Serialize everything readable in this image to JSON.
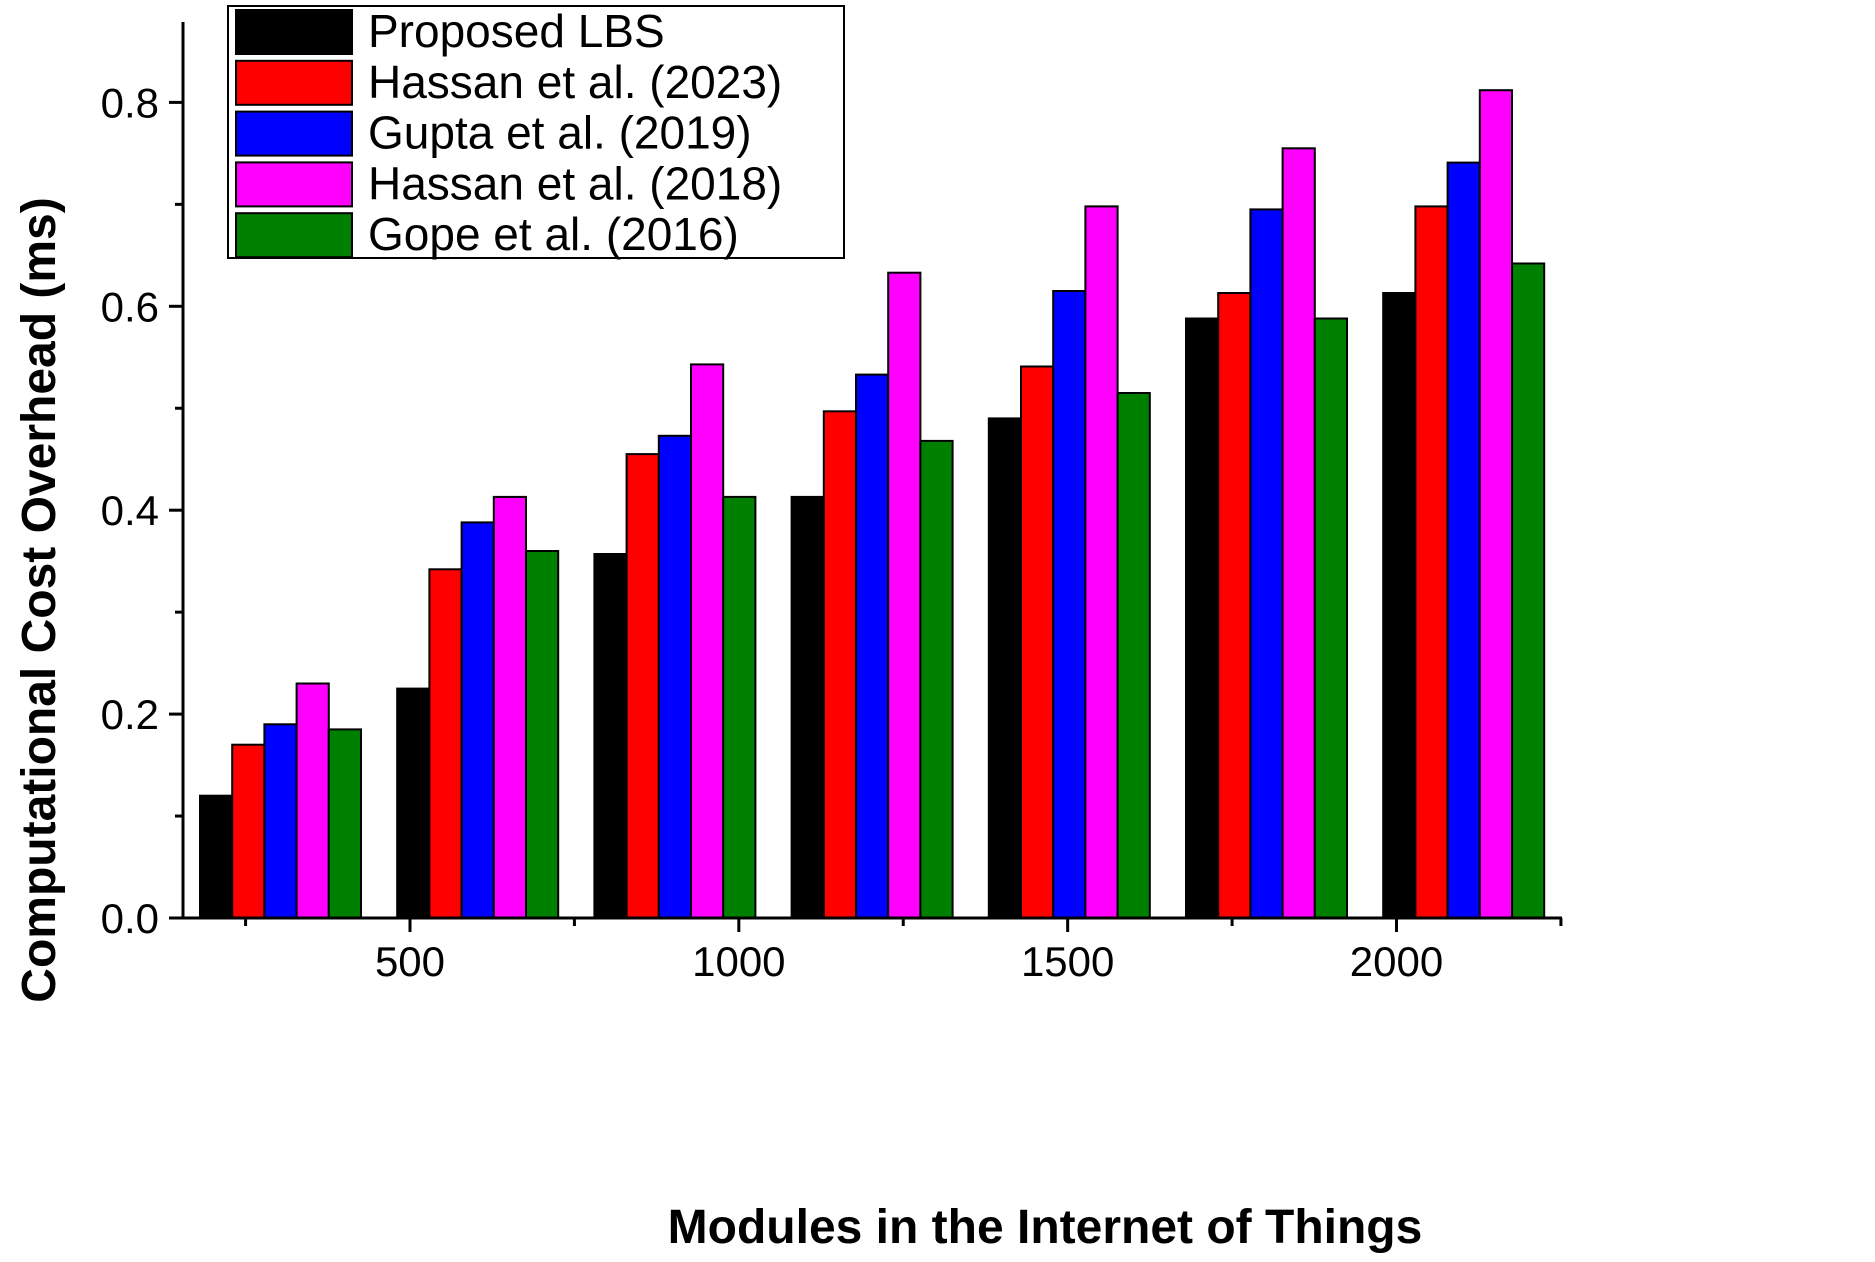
{
  "chart_data": {
    "type": "bar",
    "title": "",
    "xlabel": "Modules in the Internet of Things",
    "ylabel": "Computational Cost Overhead (ms)",
    "ylim": [
      0,
      0.88
    ],
    "yticks": [
      {
        "value": 0.0,
        "label": "0.0"
      },
      {
        "value": 0.2,
        "label": "0.2"
      },
      {
        "value": 0.4,
        "label": "0.4"
      },
      {
        "value": 0.6,
        "label": "0.6"
      },
      {
        "value": 0.8,
        "label": "0.8"
      }
    ],
    "xticks": [
      {
        "value": 500,
        "label": "500"
      },
      {
        "value": 1000,
        "label": "1000"
      },
      {
        "value": 1500,
        "label": "1500"
      },
      {
        "value": 2000,
        "label": "2000"
      }
    ],
    "categories": [
      "",
      "",
      "",
      "",
      "",
      "",
      ""
    ],
    "series": [
      {
        "name": "Proposed LBS",
        "color": "#000000",
        "values": [
          0.12,
          0.225,
          0.357,
          0.413,
          0.49,
          0.588,
          0.613
        ]
      },
      {
        "name": "Hassan et al. (2023)",
        "color": "#ff0000",
        "values": [
          0.17,
          0.342,
          0.455,
          0.497,
          0.541,
          0.613,
          0.698
        ]
      },
      {
        "name": "Gupta et al. (2019)",
        "color": "#0000ff",
        "values": [
          0.19,
          0.388,
          0.473,
          0.533,
          0.615,
          0.695,
          0.741
        ]
      },
      {
        "name": "Hassan et al. (2018)",
        "color": "#ff00ff",
        "values": [
          0.23,
          0.413,
          0.543,
          0.633,
          0.698,
          0.755,
          0.812
        ]
      },
      {
        "name": "Gope et al. (2016)",
        "color": "#008000",
        "values": [
          0.185,
          0.36,
          0.413,
          0.468,
          0.515,
          0.588,
          0.642
        ]
      }
    ],
    "grid": false,
    "legend_position": "top-left"
  }
}
